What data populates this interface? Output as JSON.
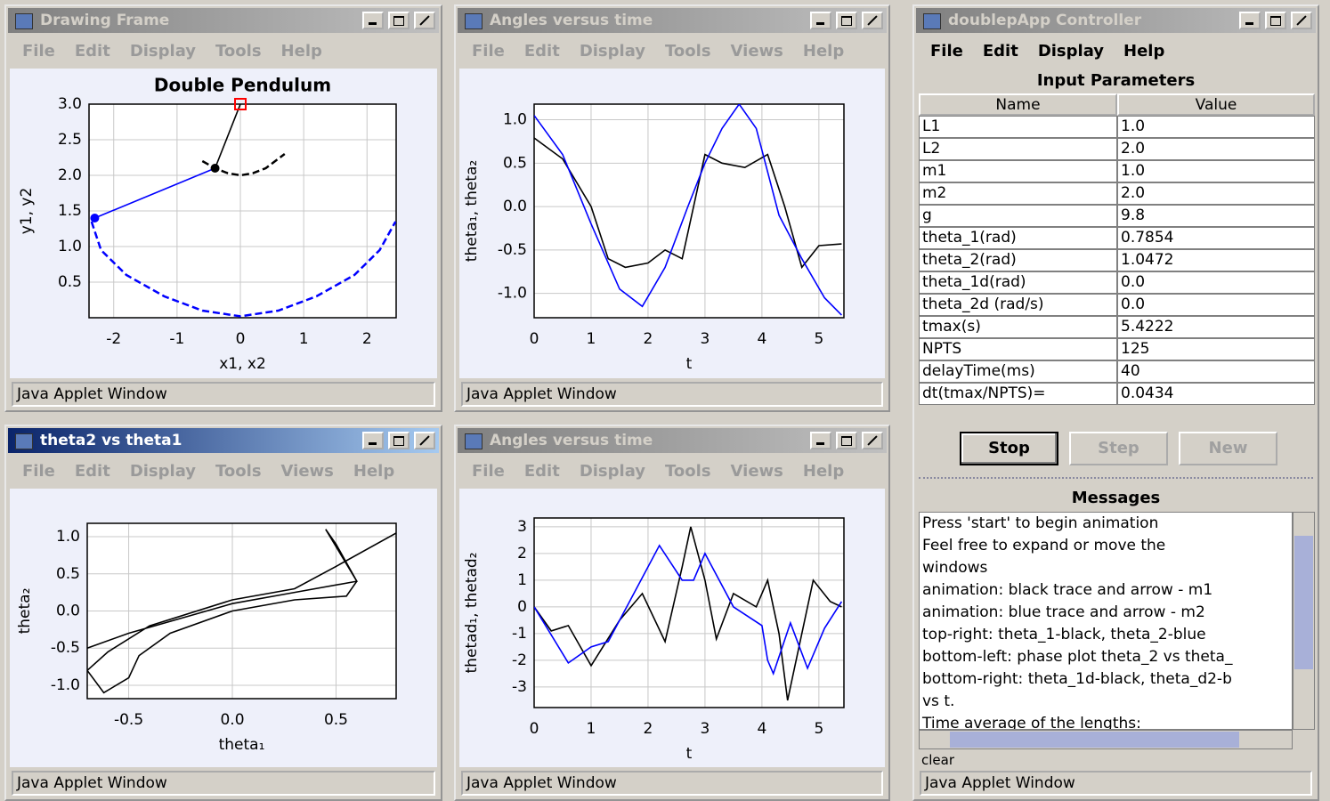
{
  "windows": [
    {
      "title": "Drawing Frame",
      "menu": [
        "File",
        "Edit",
        "Display",
        "Tools",
        "Help"
      ],
      "status": "Java Applet Window"
    },
    {
      "title": "Angles versus time",
      "menu": [
        "File",
        "Edit",
        "Display",
        "Tools",
        "Views",
        "Help"
      ],
      "status": "Java Applet Window"
    },
    {
      "title": "theta2 vs theta1",
      "menu": [
        "File",
        "Edit",
        "Display",
        "Tools",
        "Views",
        "Help"
      ],
      "status": "Java Applet Window"
    },
    {
      "title": "Angles versus time",
      "menu": [
        "File",
        "Edit",
        "Display",
        "Tools",
        "Views",
        "Help"
      ],
      "status": "Java Applet Window"
    }
  ],
  "chart_data": [
    {
      "type": "line",
      "title": "Double Pendulum",
      "x_label": "x1, x2",
      "y_label": "y1, y2",
      "grid": true,
      "xlim": [
        -2.39,
        2.46
      ],
      "ylim": [
        0,
        3
      ],
      "xticks": [
        -2,
        -1,
        0,
        1,
        2
      ],
      "yticks": [
        {
          "value": 0.5,
          "label": "0.5"
        },
        {
          "value": 1,
          "label": "1.0"
        },
        {
          "value": 1.5,
          "label": "1.5"
        },
        {
          "value": 2,
          "label": "2.0"
        },
        {
          "value": 2.5,
          "label": "2.5"
        },
        {
          "value": 3,
          "label": "3.0"
        }
      ],
      "series": [
        {
          "color": "#000000",
          "x": [
            0,
            -0.4
          ],
          "y": [
            3.0,
            2.1
          ]
        },
        {
          "color": "#0000ff",
          "x": [
            -0.4,
            -2.3
          ],
          "y": [
            2.1,
            1.4
          ]
        },
        {
          "color": "#000000",
          "dashed": true,
          "x": [
            -0.6,
            -0.4,
            -0.2,
            0,
            0.2,
            0.4,
            0.7
          ],
          "y": [
            2.2,
            2.1,
            2.03,
            2.0,
            2.03,
            2.1,
            2.3
          ]
        },
        {
          "color": "#0000ff",
          "dashed": true,
          "x": [
            -2.35,
            -2.2,
            -1.8,
            -1.2,
            -0.6,
            0,
            0.6,
            1.2,
            1.8,
            2.2,
            2.45
          ],
          "y": [
            1.35,
            0.95,
            0.6,
            0.3,
            0.1,
            0.02,
            0.1,
            0.3,
            0.6,
            0.95,
            1.35
          ]
        },
        {
          "color": "#ff0000",
          "marker": "square",
          "x": [
            0
          ],
          "y": [
            3.0
          ]
        },
        {
          "color": "#000000",
          "marker": "dot",
          "x": [
            -0.4
          ],
          "y": [
            2.1
          ]
        },
        {
          "color": "#0000ff",
          "marker": "dot",
          "x": [
            -2.3
          ],
          "y": [
            1.4
          ]
        }
      ]
    },
    {
      "type": "line",
      "x_label": "t",
      "y_label": "theta₁, theta₂",
      "grid": true,
      "xlim": [
        0,
        5.44
      ],
      "ylim": [
        -1.28,
        1.18
      ],
      "xticks": [
        0,
        1,
        2,
        3,
        4,
        5
      ],
      "yticks": [
        {
          "value": -1,
          "label": "-1.0"
        },
        {
          "value": -0.5,
          "label": "-0.5"
        },
        {
          "value": 0,
          "label": "0.0"
        },
        {
          "value": 0.5,
          "label": "0.5"
        },
        {
          "value": 1,
          "label": "1.0"
        }
      ],
      "series": [
        {
          "color": "#000000",
          "x": [
            0,
            0.5,
            1,
            1.3,
            1.6,
            2,
            2.3,
            2.6,
            3,
            3.3,
            3.7,
            4.1,
            4.4,
            4.7,
            5,
            5.4
          ],
          "y": [
            0.79,
            0.55,
            0.0,
            -0.6,
            -0.7,
            -0.65,
            -0.5,
            -0.6,
            0.6,
            0.5,
            0.45,
            0.6,
            0.0,
            -0.7,
            -0.45,
            -0.43
          ]
        },
        {
          "color": "#0000ff",
          "x": [
            0,
            0.5,
            1,
            1.5,
            1.9,
            2.3,
            2.7,
            3,
            3.3,
            3.6,
            3.9,
            4.3,
            4.7,
            5.1,
            5.4
          ],
          "y": [
            1.05,
            0.6,
            -0.2,
            -0.95,
            -1.15,
            -0.7,
            0.0,
            0.5,
            0.9,
            1.18,
            0.9,
            -0.1,
            -0.6,
            -1.05,
            -1.25
          ]
        }
      ]
    },
    {
      "type": "line",
      "x_label": "theta₁",
      "y_label": "theta₂",
      "grid": true,
      "xlim": [
        -0.7,
        0.79
      ],
      "ylim": [
        -1.18,
        1.18
      ],
      "xticks": [
        {
          "value": -0.5,
          "label": "-0.5"
        },
        {
          "value": 0,
          "label": "0.0"
        },
        {
          "value": 0.5,
          "label": "0.5"
        }
      ],
      "yticks": [
        {
          "value": -1,
          "label": "-1.0"
        },
        {
          "value": -0.5,
          "label": "-0.5"
        },
        {
          "value": 0,
          "label": "0.0"
        },
        {
          "value": 0.5,
          "label": "0.5"
        },
        {
          "value": 1,
          "label": "1.0"
        }
      ],
      "series": [
        {
          "color": "#000000",
          "x": [
            0.79,
            0.5,
            0.3,
            0,
            -0.4,
            -0.6,
            -0.7,
            -0.62,
            -0.5,
            -0.45,
            -0.3,
            0,
            0.3,
            0.55,
            0.6,
            0.5,
            0.45,
            0.6,
            0.3,
            0,
            -0.5,
            -0.7
          ],
          "y": [
            1.05,
            0.6,
            0.3,
            0.15,
            -0.2,
            -0.55,
            -0.8,
            -1.1,
            -0.9,
            -0.6,
            -0.3,
            0,
            0.15,
            0.2,
            0.4,
            0.9,
            1.1,
            0.4,
            0.25,
            0.1,
            -0.3,
            -0.5
          ]
        }
      ]
    },
    {
      "type": "line",
      "x_label": "t",
      "y_label": "thetad₁, thetad₂",
      "grid": true,
      "xlim": [
        0,
        5.44
      ],
      "ylim": [
        -3.77,
        3.33
      ],
      "xticks": [
        0,
        1,
        2,
        3,
        4,
        5
      ],
      "yticks": [
        -3,
        -2,
        -1,
        0,
        1,
        2,
        3
      ],
      "series": [
        {
          "color": "#000000",
          "x": [
            0,
            0.3,
            0.6,
            1,
            1.5,
            1.9,
            2.3,
            2.6,
            2.75,
            3,
            3.2,
            3.5,
            3.9,
            4.1,
            4.3,
            4.45,
            4.7,
            4.9,
            5.2,
            5.4
          ],
          "y": [
            0,
            -0.9,
            -0.7,
            -2.2,
            -0.5,
            0.5,
            -1.3,
            1.5,
            3,
            1.0,
            -1.2,
            0.5,
            0,
            1.0,
            -1.0,
            -3.5,
            -1.0,
            1.0,
            0.2,
            0
          ]
        },
        {
          "color": "#0000ff",
          "x": [
            0,
            0.6,
            1,
            1.3,
            1.7,
            2.2,
            2.6,
            2.8,
            3,
            3.5,
            4,
            4.1,
            4.2,
            4.5,
            4.8,
            5.1,
            5.4
          ],
          "y": [
            0,
            -2.1,
            -1.5,
            -1.3,
            0.3,
            2.3,
            1.0,
            1.0,
            2.0,
            0,
            -0.7,
            -2.0,
            -2.5,
            -0.6,
            -2.3,
            -0.8,
            0.2
          ]
        }
      ]
    }
  ],
  "controller": {
    "title": "doublepApp Controller",
    "menu": [
      "File",
      "Edit",
      "Display",
      "Help"
    ],
    "table": {
      "title": "Input Parameters",
      "columns": [
        "Name",
        "Value"
      ],
      "rows": [
        [
          "L1",
          "1.0"
        ],
        [
          "L2",
          "2.0"
        ],
        [
          "m1",
          "1.0"
        ],
        [
          "m2",
          "2.0"
        ],
        [
          "g",
          "9.8"
        ],
        [
          "theta_1(rad)",
          "0.7854"
        ],
        [
          "theta_2(rad)",
          "1.0472"
        ],
        [
          "theta_1d(rad)",
          "0.0"
        ],
        [
          "theta_2d (rad/s)",
          "0.0"
        ],
        [
          "tmax(s)",
          "5.4222"
        ],
        [
          "NPTS",
          "125"
        ],
        [
          "delayTime(ms)",
          "40"
        ],
        [
          "dt(tmax/NPTS)=",
          "0.0434"
        ]
      ]
    },
    "buttons": [
      "Stop",
      "Step",
      "New"
    ],
    "messages": {
      "title": "Messages",
      "lines": [
        "Press 'start' to begin animation",
        "Feel free to expand or move the",
        "windows",
        "animation: black trace and arrow - m1",
        "animation: blue trace and arrow - m2",
        "top-right: theta_1-black, theta_2-blue",
        "bottom-left: phase plot theta_2 vs theta_",
        "bottom-right: theta_1d-black, theta_d2-b",
        "vs t.",
        "Time average of the lengths:"
      ]
    },
    "clear": "clear",
    "status": "Java Applet Window"
  }
}
